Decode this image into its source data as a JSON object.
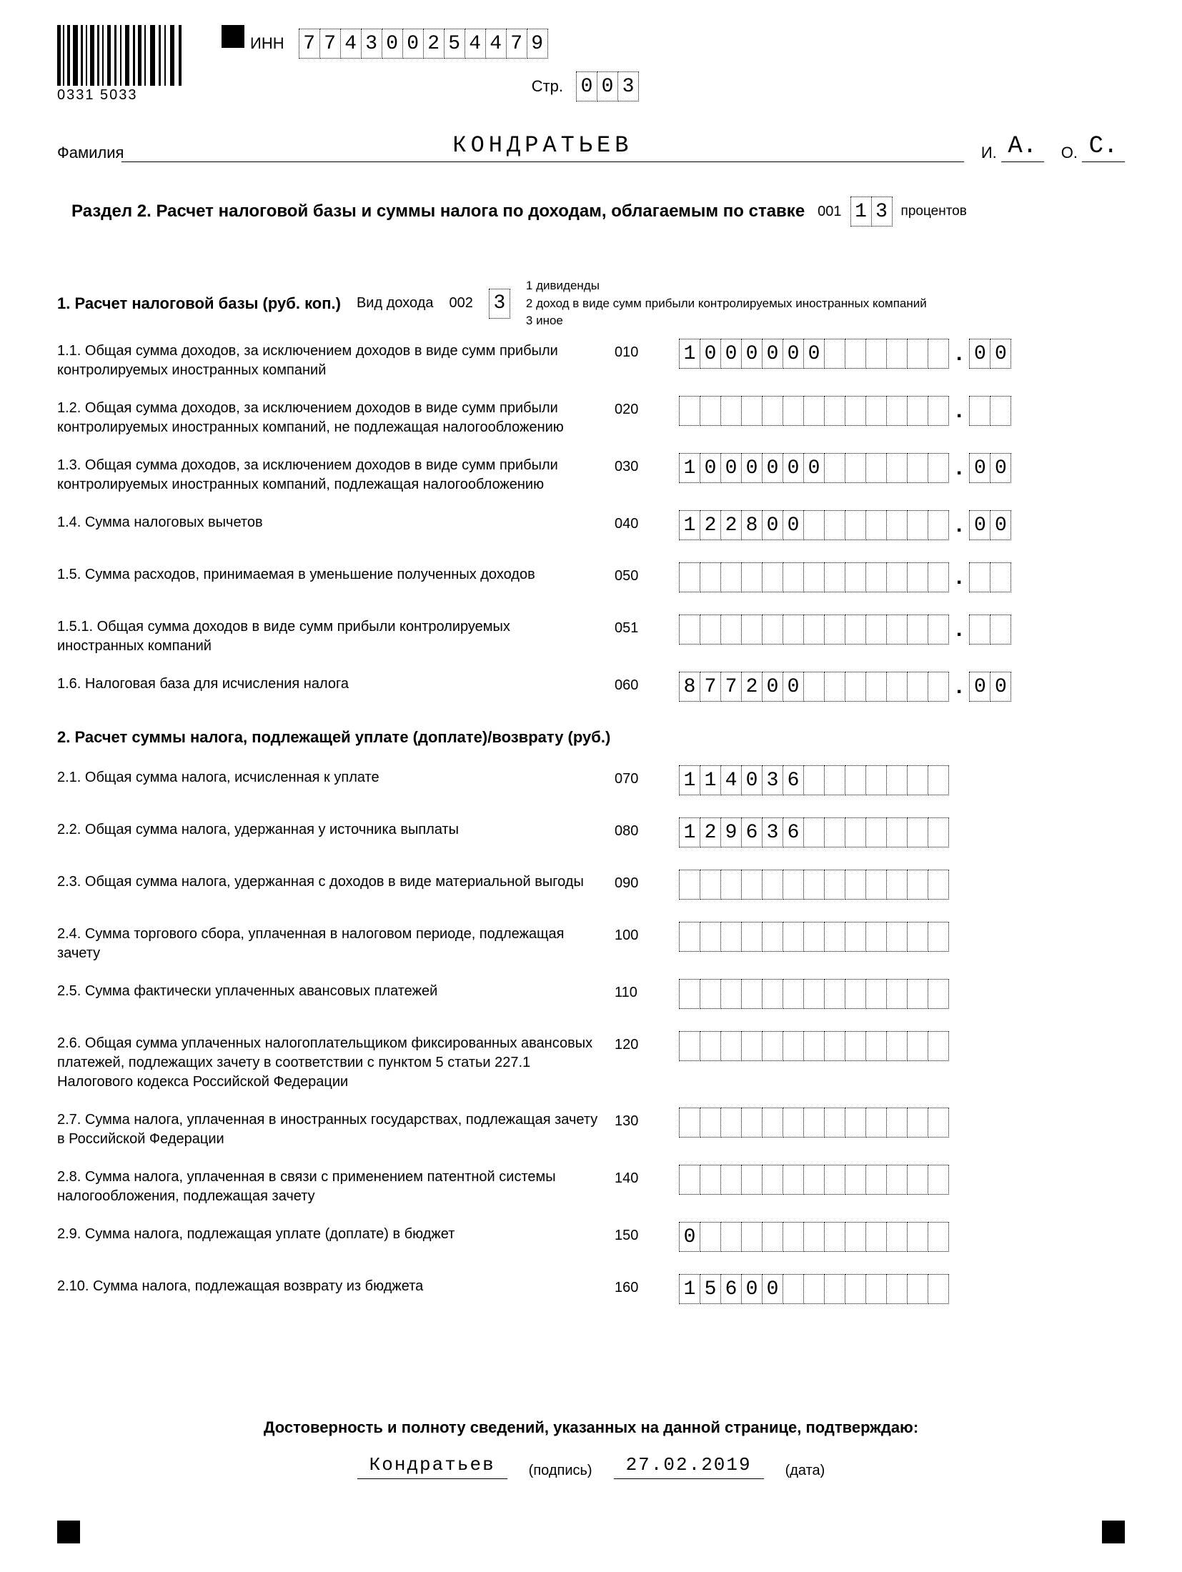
{
  "header": {
    "inn_label": "ИНН",
    "inn": [
      "7",
      "7",
      "4",
      "3",
      "0",
      "0",
      "2",
      "5",
      "4",
      "4",
      "7",
      "9"
    ],
    "page_label": "Стр.",
    "page": [
      "0",
      "0",
      "3"
    ],
    "barcode_number": "0331 5033",
    "surname_label": "Фамилия",
    "surname": "КОНДРАТЬЕВ",
    "i_label": "И.",
    "i_val": "А.",
    "o_label": "О.",
    "o_val": "С."
  },
  "section": {
    "title_bold": "Раздел 2. Расчет налоговой базы и суммы налога по доходам, облагаемым по ставке",
    "code_001": "001",
    "rate": [
      "1",
      "3"
    ],
    "percent": "процентов"
  },
  "sub1": {
    "title": "1. Расчет налоговой базы (руб. коп.)",
    "income_type_label": "Вид дохода",
    "code_002": "002",
    "income_type_val": "3",
    "legend1": "1   дивиденды",
    "legend2": "2   доход в виде сумм прибыли контролируемых иностранных компаний",
    "legend3": "3   иное"
  },
  "rows": [
    {
      "label": "1.1. Общая сумма доходов, за исключением доходов в виде сумм прибыли контролируемых иностранных компаний",
      "code": "010",
      "main": [
        "1",
        "0",
        "0",
        "0",
        "0",
        "0",
        "0",
        "",
        "",
        "",
        "",
        "",
        ""
      ],
      "kop": [
        "0",
        "0"
      ]
    },
    {
      "label": "1.2. Общая сумма доходов, за исключением доходов в виде сумм прибыли контролируемых иностранных компаний, не подлежащая налогообложению",
      "code": "020",
      "main": [
        "",
        "",
        "",
        "",
        "",
        "",
        "",
        "",
        "",
        "",
        "",
        "",
        ""
      ],
      "kop": [
        "",
        ""
      ]
    },
    {
      "label": "1.3. Общая сумма доходов, за исключением доходов в виде сумм прибыли контролируемых иностранных компаний, подлежащая налогообложению",
      "code": "030",
      "main": [
        "1",
        "0",
        "0",
        "0",
        "0",
        "0",
        "0",
        "",
        "",
        "",
        "",
        "",
        ""
      ],
      "kop": [
        "0",
        "0"
      ]
    },
    {
      "label": "1.4. Сумма налоговых вычетов",
      "code": "040",
      "main": [
        "1",
        "2",
        "2",
        "8",
        "0",
        "0",
        "",
        "",
        "",
        "",
        "",
        "",
        ""
      ],
      "kop": [
        "0",
        "0"
      ]
    },
    {
      "label": "1.5. Сумма расходов, принимаемая в уменьшение полученных доходов",
      "code": "050",
      "main": [
        "",
        "",
        "",
        "",
        "",
        "",
        "",
        "",
        "",
        "",
        "",
        "",
        ""
      ],
      "kop": [
        "",
        ""
      ]
    },
    {
      "label": "1.5.1. Общая сумма доходов в виде сумм прибыли контролируемых иностранных компаний",
      "code": "051",
      "main": [
        "",
        "",
        "",
        "",
        "",
        "",
        "",
        "",
        "",
        "",
        "",
        "",
        ""
      ],
      "kop": [
        "",
        ""
      ]
    },
    {
      "label": "1.6. Налоговая база для исчисления налога",
      "code": "060",
      "main": [
        "8",
        "7",
        "7",
        "2",
        "0",
        "0",
        "",
        "",
        "",
        "",
        "",
        "",
        ""
      ],
      "kop": [
        "0",
        "0"
      ]
    }
  ],
  "sub2": {
    "title": "2. Расчет суммы налога, подлежащей уплате (доплате)/возврату (руб.)"
  },
  "rows2": [
    {
      "label": "2.1. Общая сумма налога, исчисленная к уплате",
      "code": "070",
      "main": [
        "1",
        "1",
        "4",
        "0",
        "3",
        "6",
        "",
        "",
        "",
        "",
        "",
        "",
        ""
      ]
    },
    {
      "label": "2.2. Общая сумма налога, удержанная у источника выплаты",
      "code": "080",
      "main": [
        "1",
        "2",
        "9",
        "6",
        "3",
        "6",
        "",
        "",
        "",
        "",
        "",
        "",
        ""
      ]
    },
    {
      "label": "2.3. Общая сумма налога, удержанная с доходов в виде материальной выгоды",
      "code": "090",
      "main": [
        "",
        "",
        "",
        "",
        "",
        "",
        "",
        "",
        "",
        "",
        "",
        "",
        ""
      ]
    },
    {
      "label": "2.4. Сумма торгового сбора, уплаченная в налоговом периоде, подлежащая зачету",
      "code": "100",
      "main": [
        "",
        "",
        "",
        "",
        "",
        "",
        "",
        "",
        "",
        "",
        "",
        "",
        ""
      ]
    },
    {
      "label": "2.5. Сумма фактически уплаченных авансовых платежей",
      "code": "110",
      "main": [
        "",
        "",
        "",
        "",
        "",
        "",
        "",
        "",
        "",
        "",
        "",
        "",
        ""
      ]
    },
    {
      "label": "2.6. Общая сумма уплаченных налогоплательщиком фиксированных авансовых платежей, подлежащих зачету в соответствии с пунктом 5 статьи 227.1 Налогового кодекса Российской Федерации",
      "code": "120",
      "main": [
        "",
        "",
        "",
        "",
        "",
        "",
        "",
        "",
        "",
        "",
        "",
        "",
        ""
      ]
    },
    {
      "label": "2.7. Сумма налога, уплаченная в иностранных государствах, подлежащая зачету в Российской Федерации",
      "code": "130",
      "main": [
        "",
        "",
        "",
        "",
        "",
        "",
        "",
        "",
        "",
        "",
        "",
        "",
        ""
      ]
    },
    {
      "label": "2.8. Сумма налога, уплаченная в связи с применением патентной системы налогообложения, подлежащая зачету",
      "code": "140",
      "main": [
        "",
        "",
        "",
        "",
        "",
        "",
        "",
        "",
        "",
        "",
        "",
        "",
        ""
      ]
    },
    {
      "label": "2.9. Сумма налога, подлежащая уплате (доплате) в бюджет",
      "code": "150",
      "main": [
        "0",
        "",
        "",
        "",
        "",
        "",
        "",
        "",
        "",
        "",
        "",
        "",
        ""
      ]
    },
    {
      "label": "2.10. Сумма налога, подлежащая возврату из бюджета",
      "code": "160",
      "main": [
        "1",
        "5",
        "6",
        "0",
        "0",
        "",
        "",
        "",
        "",
        "",
        "",
        "",
        ""
      ]
    }
  ],
  "footer": {
    "title": "Достоверность и полноту сведений, указанных на данной странице, подтверждаю:",
    "sign_name": "Кондратьев",
    "sign_label": "(подпись)",
    "date": "27.02.2019",
    "date_label": "(дата)"
  }
}
